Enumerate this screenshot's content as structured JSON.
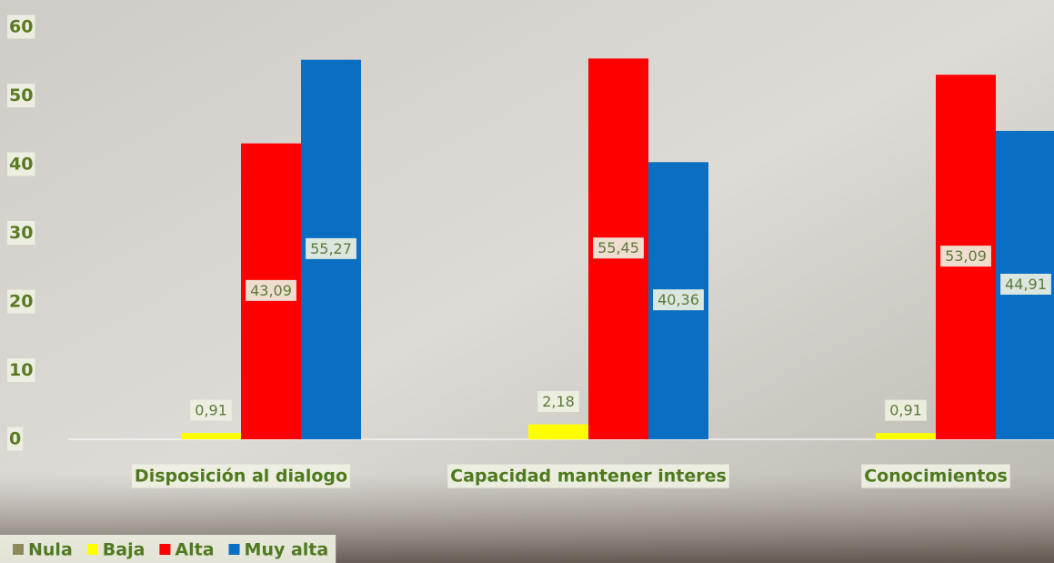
{
  "chart_data": {
    "type": "bar",
    "categories": [
      "Disposición al dialogo",
      "Capacidad mantener interes",
      "Conocimientos"
    ],
    "series": [
      {
        "name": "Nula",
        "color": "#8c8a5a",
        "values": [
          0,
          0,
          0
        ]
      },
      {
        "name": "Baja",
        "color": "#ffff00",
        "values": [
          0.91,
          2.18,
          0.91
        ],
        "value_labels": [
          "0,91",
          "2,18",
          "0,91"
        ]
      },
      {
        "name": "Alta",
        "color": "#ff0000",
        "values": [
          43.09,
          55.45,
          53.09
        ],
        "value_labels": [
          "43,09",
          "55,45",
          "53,09"
        ]
      },
      {
        "name": "Muy alta",
        "color": "#0a6fc2",
        "values": [
          55.27,
          40.36,
          44.91
        ],
        "value_labels": [
          "55,27",
          "40,36",
          "44,91"
        ]
      }
    ],
    "ylim": [
      0,
      60
    ],
    "yticks": [
      0,
      10,
      20,
      30,
      40,
      50,
      60
    ],
    "legend": "bottom-left"
  }
}
